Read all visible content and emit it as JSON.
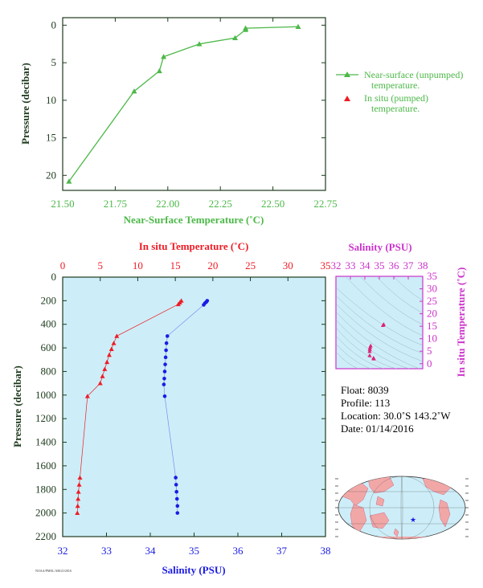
{
  "colors": {
    "green": "#4cb848",
    "red": "#ee1c25",
    "blue": "#1b1be6",
    "magenta": "#cc33cc",
    "panel_bg": "#cdeef8",
    "dark": "#1e3a1e",
    "land": "#f2a7a7",
    "ocean": "#cdeef8"
  },
  "chart_data": [
    {
      "type": "line",
      "id": "near_surface",
      "xlabel": "Near-Surface Temperature (˚C)",
      "ylabel": "Pressure (decibar)",
      "xlim": [
        21.5,
        22.75
      ],
      "ylim": [
        22,
        -1
      ],
      "x_ticks": [
        21.5,
        21.75,
        22.0,
        22.25,
        22.5,
        22.75
      ],
      "x_tick_labels": [
        "21.50",
        "21.75",
        "22.00",
        "22.25",
        "22.50",
        "22.75"
      ],
      "y_ticks": [
        0,
        5,
        10,
        15,
        20
      ],
      "y_tick_labels": [
        "0",
        "5",
        "10",
        "15",
        "20"
      ],
      "series": [
        {
          "name": "Near-surface (unpumped) temperature.",
          "marker": "triangle",
          "points": [
            [
              22.62,
              0.2
            ],
            [
              22.37,
              0.4
            ],
            [
              22.37,
              0.6
            ],
            [
              22.32,
              1.7
            ],
            [
              22.15,
              2.5
            ],
            [
              21.98,
              4.2
            ],
            [
              21.96,
              6.1
            ],
            [
              21.84,
              8.8
            ],
            [
              21.53,
              20.8
            ]
          ]
        },
        {
          "name": "In situ (pumped) temperature.",
          "marker": "triangle",
          "points": []
        }
      ],
      "legend": [
        {
          "line1": "Near-surface (unpumped)",
          "line2": "temperature."
        },
        {
          "line1": "In situ (pumped)",
          "line2": "temperature."
        }
      ],
      "legend_position": "right"
    },
    {
      "type": "scatter",
      "id": "profile",
      "top_xlabel": "In situ Temperature (˚C)",
      "bottom_xlabel": "Salinity (PSU)",
      "ylabel": "Pressure (decibar)",
      "temp_lim": [
        0,
        35
      ],
      "sal_lim": [
        32,
        38
      ],
      "ylim": [
        2200,
        0
      ],
      "temp_ticks": [
        "0",
        "5",
        "10",
        "15",
        "20",
        "25",
        "30",
        "35"
      ],
      "sal_ticks": [
        "32",
        "33",
        "34",
        "35",
        "36",
        "37",
        "38"
      ],
      "y_ticks": [
        "0",
        "200",
        "400",
        "600",
        "800",
        "1000",
        "1200",
        "1400",
        "1600",
        "1800",
        "2000",
        "2200"
      ],
      "temperature": {
        "name": "In situ Temperature",
        "points": [
          [
            15.8,
            200
          ],
          [
            15.6,
            215
          ],
          [
            15.4,
            230
          ],
          [
            7.2,
            500
          ],
          [
            6.8,
            560
          ],
          [
            6.5,
            610
          ],
          [
            6.2,
            660
          ],
          [
            5.9,
            720
          ],
          [
            5.6,
            780
          ],
          [
            5.3,
            840
          ],
          [
            5.0,
            900
          ],
          [
            3.3,
            1010
          ],
          [
            2.3,
            1700
          ],
          [
            2.2,
            1760
          ],
          [
            2.1,
            1820
          ],
          [
            2.05,
            1880
          ],
          [
            2.0,
            1940
          ],
          [
            1.95,
            2000
          ]
        ]
      },
      "salinity": {
        "name": "Salinity",
        "points": [
          [
            35.3,
            200
          ],
          [
            35.28,
            210
          ],
          [
            35.25,
            220
          ],
          [
            35.22,
            235
          ],
          [
            34.39,
            500
          ],
          [
            34.37,
            560
          ],
          [
            34.36,
            620
          ],
          [
            34.35,
            680
          ],
          [
            34.34,
            740
          ],
          [
            34.33,
            800
          ],
          [
            34.32,
            860
          ],
          [
            34.31,
            910
          ],
          [
            34.33,
            1010
          ],
          [
            34.58,
            1700
          ],
          [
            34.59,
            1760
          ],
          [
            34.6,
            1820
          ],
          [
            34.61,
            1880
          ],
          [
            34.62,
            1940
          ],
          [
            34.62,
            2000
          ]
        ]
      }
    },
    {
      "type": "scatter",
      "id": "ts_diagram",
      "xlabel": "Salinity (PSU)",
      "ylabel": "In situ Temperature (˚C)",
      "xlim": [
        32,
        38
      ],
      "ylim": [
        -2,
        35
      ],
      "x_ticks": [
        "32",
        "33",
        "34",
        "35",
        "36",
        "37",
        "38"
      ],
      "y_ticks": [
        "0",
        "5",
        "10",
        "15",
        "20",
        "25",
        "30",
        "35"
      ],
      "points": [
        [
          35.3,
          15.8
        ],
        [
          35.25,
          15.4
        ],
        [
          34.4,
          7.2
        ],
        [
          34.36,
          6.5
        ],
        [
          34.34,
          5.8
        ],
        [
          34.33,
          5.0
        ],
        [
          34.33,
          3.3
        ],
        [
          34.6,
          2.3
        ],
        [
          34.62,
          2.0
        ]
      ]
    }
  ],
  "info": {
    "float": "Float:  8039",
    "profile": "Profile:  113",
    "location": "Location:  30.0˚S  143.2˚W",
    "date": "Date:  01/14/2016"
  },
  "footer": "NOAA/PMEL/ARGO/2016"
}
